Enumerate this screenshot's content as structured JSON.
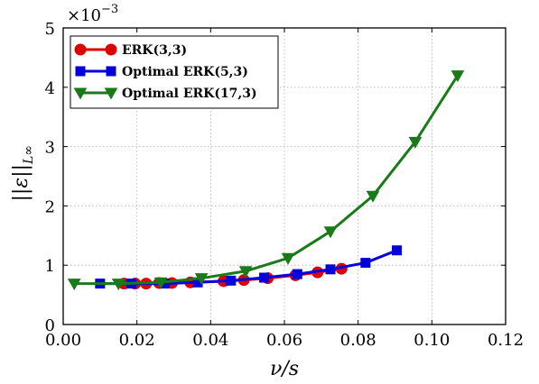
{
  "chart_data": {
    "type": "line",
    "xlabel": "ν/s",
    "ylabel": "||ε||",
    "ylabel_sub": "L∞",
    "y_multiplier": "×10",
    "y_multiplier_exp": "−3",
    "xlim": [
      0.0,
      0.12
    ],
    "ylim": [
      0,
      5
    ],
    "xticks": [
      "0.00",
      "0.02",
      "0.04",
      "0.06",
      "0.08",
      "0.10",
      "0.12"
    ],
    "yticks": [
      "0",
      "1",
      "2",
      "3",
      "4",
      "5"
    ],
    "grid": true,
    "legend_position": "top-left",
    "series": [
      {
        "name": "ERK(3,3)",
        "color": "#dd0000",
        "marker": "circle",
        "x": [
          0.0165,
          0.0195,
          0.0225,
          0.026,
          0.0295,
          0.0345,
          0.0435,
          0.049,
          0.0555,
          0.063,
          0.069,
          0.0755
        ],
        "y": [
          0.69,
          0.69,
          0.69,
          0.7,
          0.7,
          0.71,
          0.73,
          0.75,
          0.78,
          0.83,
          0.88,
          0.94
        ]
      },
      {
        "name": "Optimal ERK(5,3)",
        "color": "#0000dd",
        "marker": "square",
        "x": [
          0.01,
          0.0185,
          0.0275,
          0.0365,
          0.0455,
          0.0545,
          0.0635,
          0.0725,
          0.082,
          0.0905
        ],
        "y": [
          0.69,
          0.69,
          0.69,
          0.71,
          0.74,
          0.79,
          0.85,
          0.93,
          1.04,
          1.25
        ]
      },
      {
        "name": "Optimal ERK(17,3)",
        "color": "#1a7a1a",
        "marker": "triangle-down",
        "x": [
          0.003,
          0.015,
          0.0265,
          0.0375,
          0.0495,
          0.061,
          0.0725,
          0.084,
          0.0955,
          0.107
        ],
        "y": [
          0.69,
          0.69,
          0.71,
          0.78,
          0.9,
          1.12,
          1.57,
          2.17,
          3.08,
          4.2
        ]
      }
    ]
  }
}
